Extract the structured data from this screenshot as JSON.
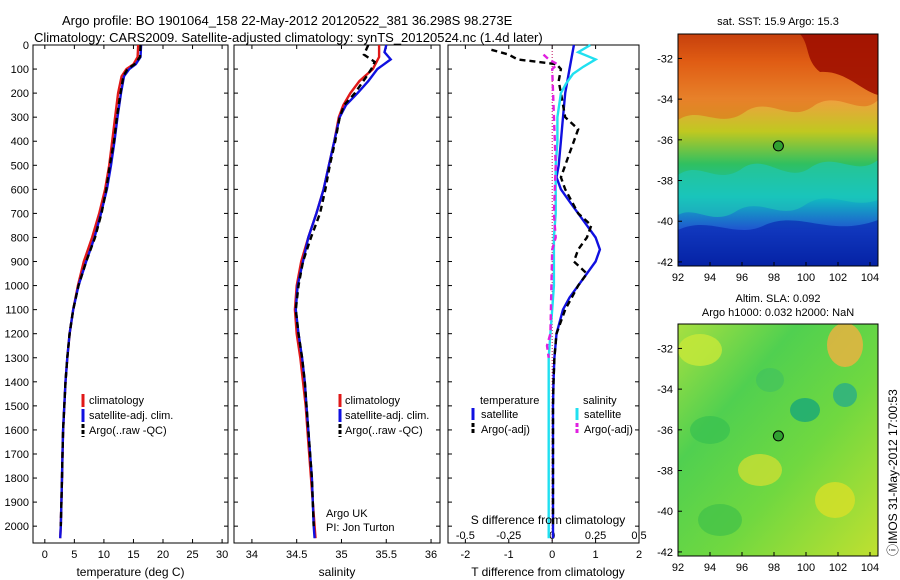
{
  "header": {
    "line1": "Argo profile: BO 1901064_158 22-May-2012 20120522_381 36.298S 98.273E",
    "line2": "Climatology: CARS2009. Satellite-adjusted climatology: synTS_20120524.nc (1.4d later)"
  },
  "colors": {
    "climatology": "#e01818",
    "satellite": "#1010e0",
    "argo": "#000000",
    "satellite_sal": "#20e0f0",
    "argo_sal": "#e020e0"
  },
  "chart_data": [
    {
      "type": "line",
      "id": "temperature",
      "xlabel": "temperature (deg C)",
      "ylabel": "",
      "xlim": [
        -2,
        31
      ],
      "ylim": [
        2070,
        0
      ],
      "x_ticks": [
        0,
        5,
        10,
        15,
        20,
        25,
        30
      ],
      "y_ticks": [
        0,
        100,
        200,
        300,
        400,
        500,
        600,
        700,
        800,
        900,
        1000,
        1100,
        1200,
        1300,
        1400,
        1500,
        1600,
        1700,
        1800,
        1900,
        2000
      ],
      "legend": [
        "climatology",
        "satellite-adj. clim.",
        "Argo(..raw -QC)"
      ],
      "series": [
        {
          "name": "climatology",
          "style": "solid",
          "color": "#e01818",
          "depth": [
            0,
            50,
            80,
            100,
            130,
            200,
            300,
            400,
            500,
            600,
            700,
            800,
            900,
            1000,
            1100,
            1200,
            1300,
            1400,
            1500,
            1600,
            1700,
            1800,
            1900,
            2000,
            2050
          ],
          "values": [
            15.8,
            15.7,
            15.0,
            13.8,
            13.0,
            12.4,
            11.9,
            11.4,
            10.9,
            10.2,
            9.2,
            8.0,
            6.6,
            5.6,
            4.8,
            4.2,
            3.8,
            3.5,
            3.3,
            3.1,
            3.0,
            2.9,
            2.8,
            2.7,
            2.6
          ]
        },
        {
          "name": "satellite-adj. clim.",
          "style": "solid",
          "color": "#1010e0",
          "depth": [
            0,
            50,
            80,
            100,
            130,
            200,
            300,
            400,
            500,
            600,
            700,
            800,
            900,
            1000,
            1100,
            1200,
            1300,
            1400,
            1500,
            1600,
            1700,
            1800,
            1900,
            2000,
            2050
          ],
          "values": [
            16.3,
            16.2,
            15.4,
            14.3,
            13.4,
            12.9,
            12.3,
            11.8,
            11.2,
            10.5,
            9.5,
            8.4,
            7.0,
            5.7,
            4.8,
            4.2,
            3.8,
            3.5,
            3.3,
            3.1,
            3.0,
            2.9,
            2.8,
            2.7,
            2.6
          ]
        },
        {
          "name": "Argo(..raw -QC)",
          "style": "dashed",
          "color": "#000000",
          "depth": [
            0,
            50,
            80,
            100,
            130,
            200,
            300,
            400,
            500,
            600,
            700,
            800,
            900,
            1000,
            1100,
            1200,
            1300,
            1400,
            1500,
            1600,
            1700,
            1800,
            1900,
            2000
          ],
          "values": [
            16.2,
            16.1,
            15.2,
            14.0,
            13.3,
            12.8,
            12.2,
            11.7,
            11.0,
            10.4,
            9.6,
            8.5,
            7.0,
            5.7,
            4.8,
            4.2,
            3.8,
            3.5,
            3.3,
            3.1,
            3.0,
            2.9,
            2.8,
            2.7
          ]
        }
      ]
    },
    {
      "type": "line",
      "id": "salinity",
      "xlabel": "salinity",
      "ylabel": "",
      "xlim": [
        33.8,
        36.1
      ],
      "ylim": [
        2070,
        0
      ],
      "x_ticks": [
        34,
        34.5,
        35,
        35.5,
        36
      ],
      "legend": [
        "climatology",
        "satellite-adj. clim.",
        "Argo(..raw -QC)"
      ],
      "annotation": [
        "Argo UK",
        "PI: Jon Turton"
      ],
      "series": [
        {
          "name": "climatology",
          "style": "solid",
          "color": "#e01818",
          "depth": [
            0,
            50,
            100,
            150,
            200,
            250,
            300,
            400,
            500,
            600,
            700,
            800,
            900,
            1000,
            1100,
            1200,
            1300,
            1400,
            1500,
            1600,
            1700,
            1800,
            1900,
            2000,
            2050
          ],
          "values": [
            35.42,
            35.42,
            35.35,
            35.2,
            35.1,
            35.02,
            34.97,
            34.92,
            34.86,
            34.8,
            34.72,
            34.63,
            34.55,
            34.5,
            34.48,
            34.5,
            34.54,
            34.57,
            34.6,
            34.62,
            34.64,
            34.66,
            34.68,
            34.7,
            34.71
          ]
        },
        {
          "name": "satellite-adj. clim.",
          "style": "solid",
          "color": "#1010e0",
          "depth": [
            0,
            30,
            60,
            100,
            150,
            200,
            250,
            300,
            400,
            500,
            600,
            700,
            800,
            900,
            1000,
            1100,
            1200,
            1300,
            1400,
            1500,
            1600,
            1700,
            1800,
            1900,
            2000,
            2050
          ],
          "values": [
            35.5,
            35.48,
            35.55,
            35.4,
            35.3,
            35.18,
            35.05,
            34.98,
            34.92,
            34.86,
            34.8,
            34.72,
            34.63,
            34.57,
            34.51,
            34.49,
            34.52,
            34.56,
            34.59,
            34.61,
            34.63,
            34.65,
            34.67,
            34.68,
            34.69,
            34.7
          ]
        },
        {
          "name": "Argo(..raw -QC)",
          "style": "dashed",
          "color": "#000000",
          "depth": [
            0,
            40,
            70,
            90,
            130,
            200,
            250,
            300,
            400,
            500,
            600,
            700,
            800,
            900,
            1000,
            1100,
            1200,
            1300,
            1400,
            1500,
            1600,
            1700,
            1800,
            1900,
            2000
          ],
          "values": [
            35.3,
            35.25,
            35.37,
            35.35,
            35.28,
            35.15,
            35.03,
            34.98,
            34.93,
            34.87,
            34.82,
            34.76,
            34.66,
            34.57,
            34.52,
            34.49,
            34.52,
            34.56,
            34.59,
            34.61,
            34.63,
            34.65,
            34.67,
            34.68,
            34.69
          ]
        }
      ]
    },
    {
      "type": "line",
      "id": "difference",
      "xlabel": "T difference from climatology",
      "xlabel_top": "S difference from climatology",
      "xlim": [
        -2.4,
        2.0
      ],
      "x_ticks": [
        -2,
        -1,
        0,
        1,
        2
      ],
      "x_ticks_labels": [
        "-2",
        "-1",
        "0",
        "1",
        "2"
      ],
      "s_ticks": [
        -0.5,
        -0.25,
        0,
        0.25,
        0.5
      ],
      "s_ticks_labels": [
        "-0.5",
        "-0.25",
        "0",
        "0.25",
        "0.5"
      ],
      "legend_temperature_title": "temperature",
      "legend_salinity_title": "salinity",
      "legend_temperature": [
        "satellite",
        "Argo(-adj)"
      ],
      "legend_salinity": [
        "satellite",
        "Argo(-adj)"
      ],
      "series": [
        {
          "name": "satellite",
          "group": "temperature",
          "style": "solid",
          "color": "#1010e0",
          "depth": [
            0,
            50,
            100,
            200,
            300,
            400,
            500,
            550,
            600,
            650,
            700,
            750,
            800,
            850,
            900,
            950,
            1000,
            1050,
            1100,
            1200,
            1300,
            1400,
            1500,
            1600,
            1700,
            1800,
            1900,
            2000,
            2050
          ],
          "values": [
            0.5,
            0.45,
            0.4,
            0.3,
            0.25,
            0.2,
            0.15,
            0.1,
            0.2,
            0.4,
            0.6,
            0.8,
            1.0,
            1.1,
            1.0,
            0.8,
            0.6,
            0.4,
            0.25,
            0.1,
            0.05,
            0.03,
            0.02,
            0.02,
            0.02,
            0.02,
            0.02,
            0.02,
            0.02
          ]
        },
        {
          "name": "Argo(-adj)",
          "group": "temperature",
          "style": "dashed",
          "color": "#000000",
          "depth": [
            20,
            40,
            60,
            80,
            100,
            150,
            200,
            300,
            350,
            400,
            450,
            500,
            550,
            600,
            700,
            750,
            800,
            850,
            900,
            950,
            1000,
            1100,
            1200,
            1300,
            1400,
            1500,
            1600,
            1700,
            1800,
            1900,
            2000
          ],
          "values": [
            -1.4,
            -1.0,
            -0.8,
            0.1,
            0.2,
            0.15,
            0.2,
            0.3,
            0.6,
            0.5,
            0.4,
            0.3,
            0.2,
            0.3,
            0.6,
            0.9,
            0.8,
            0.6,
            0.5,
            0.8,
            0.6,
            0.3,
            0.1,
            0.05,
            0.03,
            0.02,
            0.02,
            0.02,
            0.02,
            0.02,
            0.02
          ]
        },
        {
          "name": "satellite",
          "group": "salinity",
          "style": "solid",
          "color": "#20e0f0",
          "depth": [
            0,
            30,
            60,
            90,
            120,
            160,
            200,
            300,
            400,
            500,
            600,
            700,
            800,
            900,
            1000,
            1100,
            1200,
            1300,
            1400,
            1500,
            1600,
            1700,
            1800,
            1900,
            2000,
            2050
          ],
          "values": [
            0.22,
            0.15,
            0.25,
            0.18,
            0.12,
            0.08,
            0.05,
            0.03,
            0.03,
            0.02,
            0.02,
            0.02,
            0.01,
            0.01,
            0.01,
            0.0,
            -0.01,
            -0.02,
            -0.02,
            -0.02,
            -0.02,
            -0.02,
            -0.02,
            -0.02,
            -0.02,
            -0.02
          ]
        },
        {
          "name": "Argo(-adj)",
          "group": "salinity",
          "style": "dashed",
          "color": "#e020e0",
          "depth": [
            40,
            60,
            80,
            100,
            500,
            700,
            800,
            850,
            1200,
            1250,
            1300
          ],
          "values": [
            -0.05,
            -0.02,
            0.03,
            0.0,
            0.02,
            0.01,
            0.02,
            0.0,
            -0.01,
            -0.03,
            -0.02
          ]
        }
      ]
    },
    {
      "type": "heatmap",
      "id": "sst-map",
      "title": "sat. SST: 15.9  Argo: 15.3",
      "xlim": [
        92,
        104.5
      ],
      "ylim": [
        -42.2,
        -30.8
      ],
      "x_ticks": [
        92,
        94,
        96,
        98,
        100,
        102,
        104
      ],
      "y_ticks": [
        -32,
        -34,
        -36,
        -38,
        -40,
        -42
      ],
      "marker": {
        "lon": 98.273,
        "lat": -36.298
      }
    },
    {
      "type": "heatmap",
      "id": "sla-map",
      "title": "Altim. SLA: 0.092",
      "subtitle": "Argo h1000: 0.032  h2000: NaN",
      "xlim": [
        92,
        104.5
      ],
      "ylim": [
        -42.2,
        -30.8
      ],
      "x_ticks": [
        92,
        94,
        96,
        98,
        100,
        102,
        104
      ],
      "y_ticks": [
        -32,
        -34,
        -36,
        -38,
        -40,
        -42
      ],
      "marker": {
        "lon": 98.273,
        "lat": -36.298
      }
    }
  ],
  "footer": {
    "stamp": "ⓘIMOS 31-May-2012 17:00:53"
  }
}
